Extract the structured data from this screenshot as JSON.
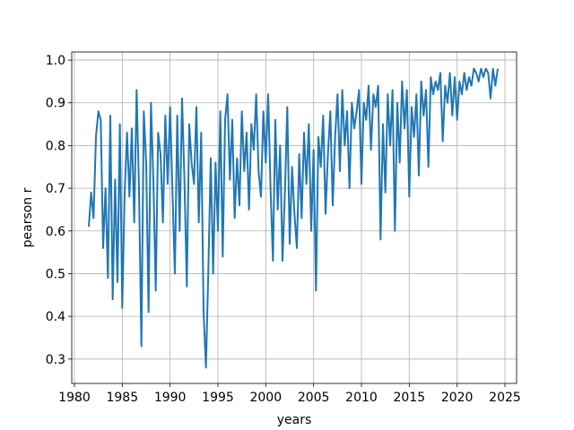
{
  "chart_data": {
    "type": "line",
    "x_label": "years",
    "y_label": "pearson r",
    "x": [
      1981.5,
      1981.75,
      1982,
      1982.25,
      1982.5,
      1982.75,
      1983,
      1983.25,
      1983.5,
      1983.75,
      1984,
      1984.25,
      1984.5,
      1984.75,
      1985,
      1985.25,
      1985.5,
      1985.75,
      1986,
      1986.25,
      1986.5,
      1986.75,
      1987,
      1987.25,
      1987.5,
      1987.75,
      1988,
      1988.25,
      1988.5,
      1988.75,
      1989,
      1989.25,
      1989.5,
      1989.75,
      1990,
      1990.25,
      1990.5,
      1990.75,
      1991,
      1991.25,
      1991.5,
      1991.75,
      1992,
      1992.25,
      1992.5,
      1992.75,
      1993,
      1993.25,
      1993.5,
      1993.75,
      1994,
      1994.25,
      1994.5,
      1994.75,
      1995,
      1995.25,
      1995.5,
      1995.75,
      1996,
      1996.25,
      1996.5,
      1996.75,
      1997,
      1997.25,
      1997.5,
      1997.75,
      1998,
      1998.25,
      1998.5,
      1998.75,
      1999,
      1999.25,
      1999.5,
      1999.75,
      2000,
      2000.25,
      2000.5,
      2000.75,
      2001,
      2001.25,
      2001.5,
      2001.75,
      2002,
      2002.25,
      2002.5,
      2002.75,
      2003,
      2003.25,
      2003.5,
      2003.75,
      2004,
      2004.25,
      2004.5,
      2004.75,
      2005,
      2005.25,
      2005.5,
      2005.75,
      2006,
      2006.25,
      2006.5,
      2006.75,
      2007,
      2007.25,
      2007.5,
      2007.75,
      2008,
      2008.25,
      2008.5,
      2008.75,
      2009,
      2009.25,
      2009.5,
      2009.75,
      2010,
      2010.25,
      2010.5,
      2010.75,
      2011,
      2011.25,
      2011.5,
      2011.75,
      2012,
      2012.25,
      2012.5,
      2012.75,
      2013,
      2013.25,
      2013.5,
      2013.75,
      2014,
      2014.25,
      2014.5,
      2014.75,
      2015,
      2015.25,
      2015.5,
      2015.75,
      2016,
      2016.25,
      2016.5,
      2016.75,
      2017,
      2017.25,
      2017.5,
      2017.75,
      2018,
      2018.25,
      2018.5,
      2018.75,
      2019,
      2019.25,
      2019.5,
      2019.75,
      2020,
      2020.25,
      2020.5,
      2020.75,
      2021,
      2021.25,
      2021.5,
      2021.75,
      2022,
      2022.25,
      2022.5,
      2022.75,
      2023,
      2023.25,
      2023.5,
      2023.75,
      2024,
      2024.25
    ],
    "series": [
      {
        "color": "#1f77b4",
        "values": [
          0.61,
          0.69,
          0.63,
          0.82,
          0.88,
          0.86,
          0.56,
          0.7,
          0.49,
          0.87,
          0.44,
          0.72,
          0.48,
          0.85,
          0.42,
          0.69,
          0.83,
          0.68,
          0.84,
          0.62,
          0.93,
          0.7,
          0.33,
          0.88,
          0.76,
          0.41,
          0.9,
          0.72,
          0.46,
          0.83,
          0.78,
          0.62,
          0.87,
          0.71,
          0.89,
          0.69,
          0.5,
          0.87,
          0.6,
          0.91,
          0.72,
          0.47,
          0.85,
          0.76,
          0.71,
          0.89,
          0.62,
          0.83,
          0.41,
          0.28,
          0.51,
          0.77,
          0.5,
          0.76,
          0.6,
          0.88,
          0.54,
          0.86,
          0.92,
          0.72,
          0.86,
          0.63,
          0.77,
          0.66,
          0.88,
          0.74,
          0.83,
          0.65,
          0.85,
          0.79,
          0.92,
          0.74,
          0.68,
          0.88,
          0.76,
          0.92,
          0.7,
          0.53,
          0.86,
          0.65,
          0.8,
          0.53,
          0.69,
          0.89,
          0.57,
          0.75,
          0.64,
          0.56,
          0.78,
          0.63,
          0.83,
          0.71,
          0.85,
          0.6,
          0.79,
          0.46,
          0.82,
          0.75,
          0.87,
          0.64,
          0.78,
          0.88,
          0.66,
          0.82,
          0.92,
          0.74,
          0.93,
          0.8,
          0.88,
          0.7,
          0.9,
          0.84,
          0.88,
          0.93,
          0.71,
          0.9,
          0.86,
          0.94,
          0.79,
          0.92,
          0.89,
          0.94,
          0.58,
          0.85,
          0.69,
          0.92,
          0.8,
          0.93,
          0.6,
          0.9,
          0.76,
          0.95,
          0.84,
          0.93,
          0.68,
          0.89,
          0.82,
          0.92,
          0.73,
          0.95,
          0.87,
          0.93,
          0.75,
          0.96,
          0.92,
          0.95,
          0.93,
          0.97,
          0.81,
          0.94,
          0.9,
          0.97,
          0.87,
          0.96,
          0.86,
          0.95,
          0.92,
          0.97,
          0.93,
          0.96,
          0.94,
          0.98,
          0.97,
          0.95,
          0.98,
          0.96,
          0.98,
          0.97,
          0.91,
          0.98,
          0.94,
          0.98
        ]
      }
    ],
    "xlim": [
      1979.72,
      2026.22
    ],
    "ylim": [
      0.243,
      1.019
    ],
    "xticks": [
      1980,
      1985,
      1990,
      1995,
      2000,
      2005,
      2010,
      2015,
      2020,
      2025
    ],
    "yticks": [
      0.3,
      0.4,
      0.5,
      0.6,
      0.7,
      0.8,
      0.9,
      {
        "value": 1,
        "label": "1.0"
      }
    ],
    "grid": true
  }
}
